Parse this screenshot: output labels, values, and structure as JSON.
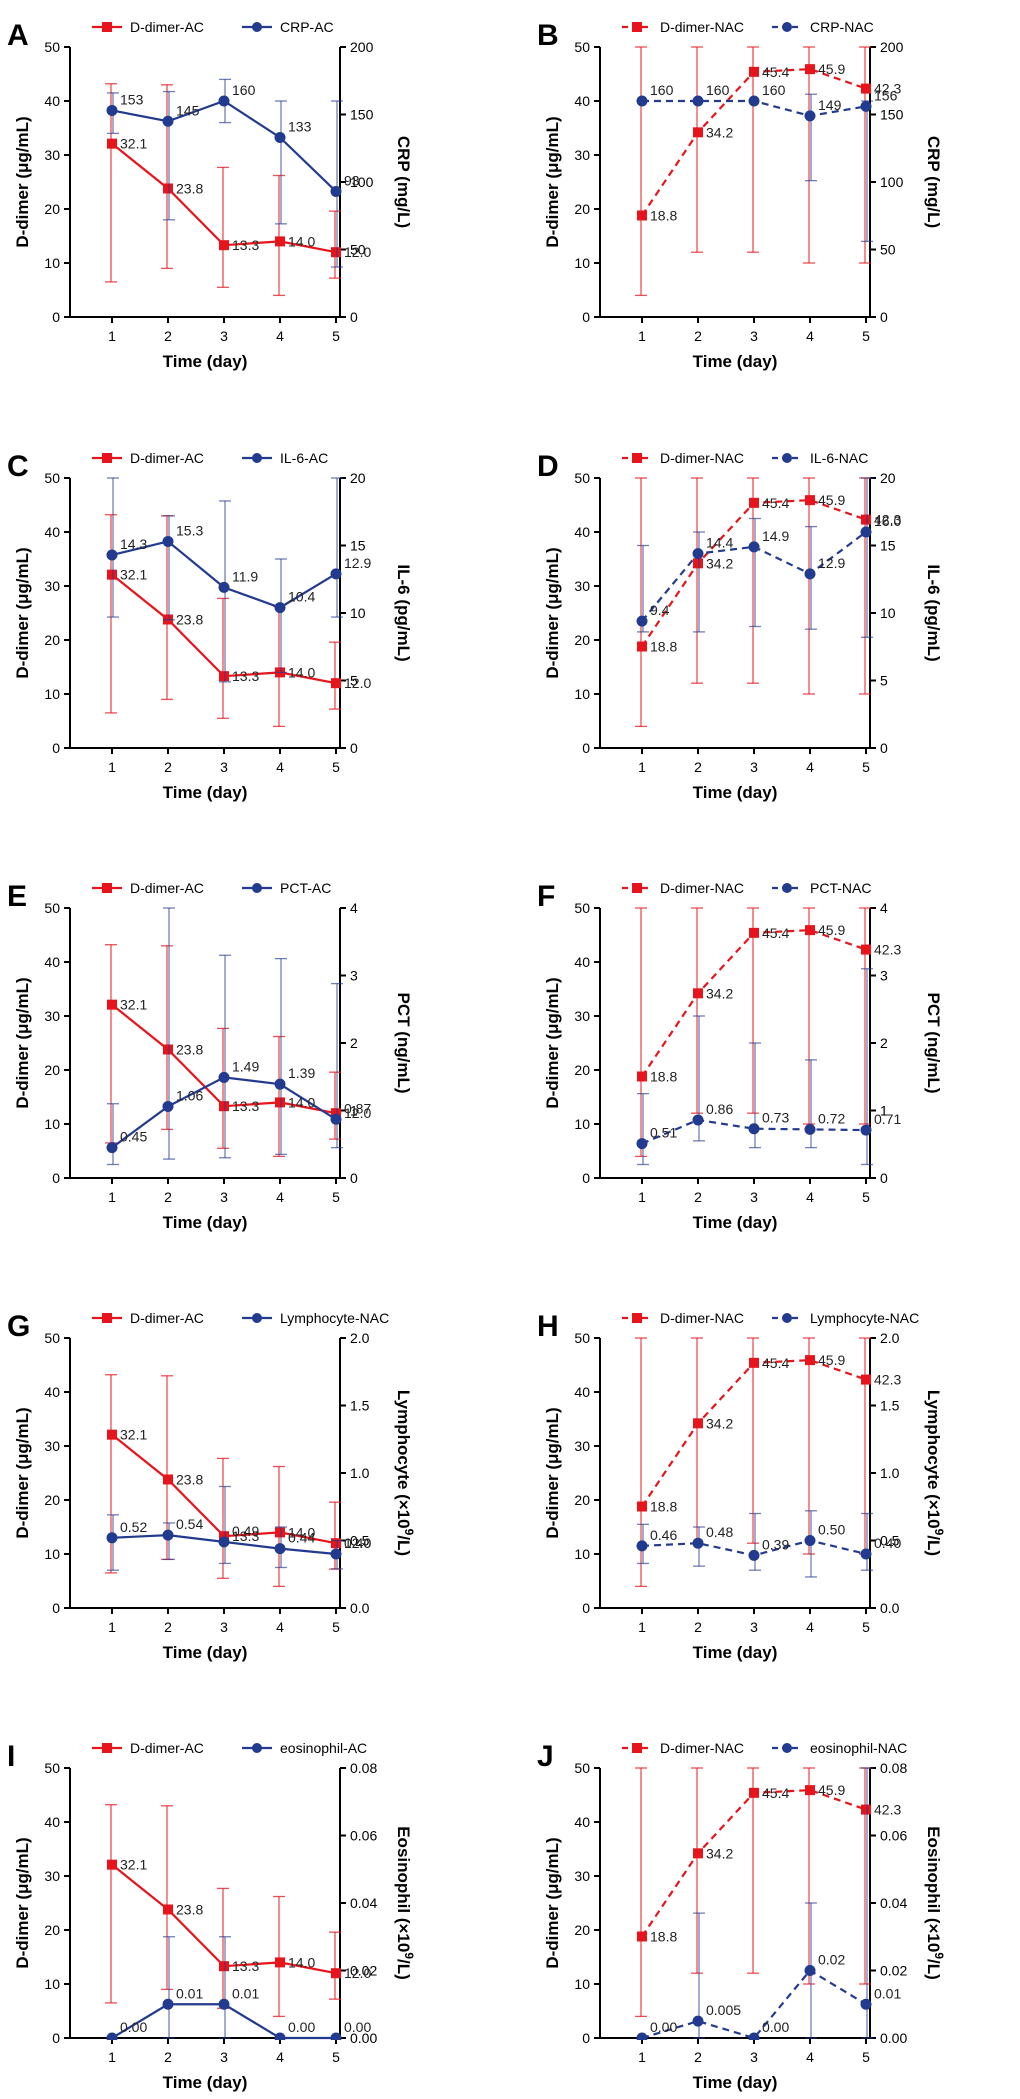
{
  "figure": {
    "xlabel": "Time (day)",
    "days": [
      "1",
      "2",
      "3",
      "4",
      "5"
    ],
    "left_axis": {
      "label": "D-dimer (μg/mL)",
      "ticks": [
        "0",
        "10",
        "20",
        "30",
        "40",
        "50"
      ]
    },
    "red_color": "#e8141b",
    "blue_color": "#233b8f"
  },
  "chart_data": [
    {
      "panel": "A",
      "type": "line",
      "xlabel": "Time (day)",
      "ylabel": "D-dimer (μg/mL)",
      "y2label": "CRP (mg/L)",
      "x": [
        1,
        2,
        3,
        4,
        5
      ],
      "ylim": [
        0,
        50
      ],
      "y2lim": [
        0,
        200
      ],
      "y2ticks": [
        "0",
        "50",
        "100",
        "150",
        "200"
      ],
      "series": [
        {
          "name": "D-dimer-AC",
          "axis": "left",
          "dashed": false,
          "marker": "square",
          "values": [
            32.1,
            23.8,
            13.3,
            14.0,
            12.0
          ],
          "labels": [
            "32.1",
            "23.8",
            "13.3",
            "14.0",
            "12.0"
          ],
          "err_low": [
            6.5,
            9,
            5.5,
            4,
            7.2
          ],
          "err_high": [
            43.2,
            43,
            27.7,
            26.2,
            19.6
          ]
        },
        {
          "name": "CRP-AC",
          "axis": "right",
          "dashed": false,
          "marker": "circle",
          "values": [
            153,
            145,
            160,
            133,
            93
          ],
          "labels": [
            "153",
            "145",
            "160",
            "133",
            "93"
          ],
          "err_low": [
            136,
            72,
            144,
            69,
            37
          ],
          "err_high": [
            166,
            167,
            176,
            160,
            160
          ]
        }
      ]
    },
    {
      "panel": "B",
      "type": "line",
      "xlabel": "Time (day)",
      "ylabel": "D-dimer (μg/mL)",
      "y2label": "CRP (mg/L)",
      "x": [
        1,
        2,
        3,
        4,
        5
      ],
      "ylim": [
        0,
        50
      ],
      "y2lim": [
        0,
        200
      ],
      "y2ticks": [
        "0",
        "50",
        "100",
        "150",
        "200"
      ],
      "series": [
        {
          "name": "D-dimer-NAC",
          "axis": "left",
          "dashed": true,
          "marker": "square",
          "values": [
            18.8,
            34.2,
            45.4,
            45.9,
            42.3
          ],
          "labels": [
            "18.8",
            "34.2",
            "45.4",
            "45.9",
            "42.3"
          ],
          "err_low": [
            4,
            12,
            12,
            10,
            10
          ],
          "err_high": [
            50,
            50,
            50,
            50,
            50
          ]
        },
        {
          "name": "CRP-NAC",
          "axis": "right",
          "dashed": true,
          "marker": "circle",
          "values": [
            160,
            160,
            160,
            149,
            156
          ],
          "labels": [
            "160",
            "160",
            "160",
            "149",
            "156"
          ],
          "err_low": [
            160,
            160,
            160,
            101,
            56
          ],
          "err_high": [
            160,
            160,
            160,
            165,
            160
          ]
        }
      ]
    },
    {
      "panel": "C",
      "type": "line",
      "xlabel": "Time (day)",
      "ylabel": "D-dimer (μg/mL)",
      "y2label": "IL-6 (pg/mL)",
      "x": [
        1,
        2,
        3,
        4,
        5
      ],
      "ylim": [
        0,
        50
      ],
      "y2lim": [
        0,
        20
      ],
      "y2ticks": [
        "0",
        "5",
        "10",
        "15",
        "20"
      ],
      "series": [
        {
          "name": "D-dimer-AC",
          "axis": "left",
          "dashed": false,
          "marker": "square",
          "values": [
            32.1,
            23.8,
            13.3,
            14.0,
            12.0
          ],
          "labels": [
            "32.1",
            "23.8",
            "13.3",
            "14.0",
            "12.0"
          ],
          "err_low": [
            6.5,
            9,
            5.5,
            4,
            7.2
          ],
          "err_high": [
            43.2,
            43,
            27.7,
            26.2,
            19.6
          ]
        },
        {
          "name": "IL-6-AC",
          "axis": "right",
          "dashed": false,
          "marker": "circle",
          "values": [
            14.3,
            15.3,
            11.9,
            10.4,
            12.9
          ],
          "labels": [
            "14.3",
            "15.3",
            "11.9",
            "10.4",
            "12.9"
          ],
          "err_low": [
            9.7,
            9.5,
            4.9,
            5.6,
            9.7
          ],
          "err_high": [
            20,
            17.2,
            18.3,
            14.0,
            20
          ]
        }
      ]
    },
    {
      "panel": "D",
      "type": "line",
      "xlabel": "Time (day)",
      "ylabel": "D-dimer (μg/mL)",
      "y2label": "IL-6 (pg/mL)",
      "x": [
        1,
        2,
        3,
        4,
        5
      ],
      "ylim": [
        0,
        50
      ],
      "y2lim": [
        0,
        20
      ],
      "y2ticks": [
        "0",
        "5",
        "10",
        "15",
        "20"
      ],
      "series": [
        {
          "name": "D-dimer-NAC",
          "axis": "left",
          "dashed": true,
          "marker": "square",
          "values": [
            18.8,
            34.2,
            45.4,
            45.9,
            42.3
          ],
          "labels": [
            "18.8",
            "34.2",
            "45.4",
            "45.9",
            "42.3"
          ],
          "err_low": [
            4,
            12,
            12,
            10,
            10
          ],
          "err_high": [
            50,
            50,
            50,
            50,
            50
          ]
        },
        {
          "name": "IL-6-NAC",
          "axis": "right",
          "dashed": true,
          "marker": "circle",
          "values": [
            9.4,
            14.4,
            14.9,
            12.9,
            16.0
          ],
          "labels": [
            "9.4",
            "14.4",
            "14.9",
            "12.9",
            "16.0"
          ],
          "err_low": [
            8.6,
            8.6,
            9.0,
            8.8,
            8.2
          ],
          "err_high": [
            15.0,
            16.0,
            17.0,
            16.4,
            20
          ]
        }
      ]
    },
    {
      "panel": "E",
      "type": "line",
      "xlabel": "Time (day)",
      "ylabel": "D-dimer (μg/mL)",
      "y2label": "PCT (ng/mL)",
      "x": [
        1,
        2,
        3,
        4,
        5
      ],
      "ylim": [
        0,
        50
      ],
      "y2lim": [
        0,
        4
      ],
      "y2ticks": [
        "0",
        "1",
        "2",
        "3",
        "4"
      ],
      "series": [
        {
          "name": "D-dimer-AC",
          "axis": "left",
          "dashed": false,
          "marker": "square",
          "values": [
            32.1,
            23.8,
            13.3,
            14.0,
            12.0
          ],
          "labels": [
            "32.1",
            "23.8",
            "13.3",
            "14.0",
            "12.0"
          ],
          "err_low": [
            6.5,
            9,
            5.5,
            4,
            7.2
          ],
          "err_high": [
            43.2,
            43,
            27.7,
            26.2,
            19.6
          ]
        },
        {
          "name": "PCT-AC",
          "axis": "right",
          "dashed": false,
          "marker": "circle",
          "values": [
            0.45,
            1.06,
            1.49,
            1.39,
            0.87
          ],
          "labels": [
            "0.45",
            "1.06",
            "1.49",
            "1.39",
            "0.87"
          ],
          "err_low": [
            0.2,
            0.28,
            0.3,
            0.35,
            0.45
          ],
          "err_high": [
            1.1,
            4.0,
            3.3,
            3.25,
            2.88
          ]
        }
      ]
    },
    {
      "panel": "F",
      "type": "line",
      "xlabel": "Time (day)",
      "ylabel": "D-dimer (μg/mL)",
      "y2label": "PCT (ng/mL)",
      "x": [
        1,
        2,
        3,
        4,
        5
      ],
      "ylim": [
        0,
        50
      ],
      "y2lim": [
        0,
        4
      ],
      "y2ticks": [
        "0",
        "1",
        "2",
        "3",
        "4"
      ],
      "series": [
        {
          "name": "D-dimer-NAC",
          "axis": "left",
          "dashed": true,
          "marker": "square",
          "values": [
            18.8,
            34.2,
            45.4,
            45.9,
            42.3
          ],
          "labels": [
            "18.8",
            "34.2",
            "45.4",
            "45.9",
            "42.3"
          ],
          "err_low": [
            4,
            12,
            12,
            10,
            10
          ],
          "err_high": [
            50,
            50,
            50,
            50,
            50
          ]
        },
        {
          "name": "PCT-NAC",
          "axis": "right",
          "dashed": true,
          "marker": "circle",
          "values": [
            0.51,
            0.86,
            0.73,
            0.72,
            0.71
          ],
          "labels": [
            "0.51",
            "0.86",
            "0.73",
            "0.72",
            "0.71"
          ],
          "err_low": [
            0.2,
            0.55,
            0.45,
            0.45,
            0.2
          ],
          "err_high": [
            1.25,
            2.4,
            2.0,
            1.75,
            3.1
          ]
        }
      ]
    },
    {
      "panel": "G",
      "type": "line",
      "xlabel": "Time (day)",
      "ylabel": "D-dimer (μg/mL)",
      "y2label": "Lymphocyte (×10⁹/L)",
      "x": [
        1,
        2,
        3,
        4,
        5
      ],
      "ylim": [
        0,
        50
      ],
      "y2lim": [
        0,
        2.0
      ],
      "y2ticks": [
        "0.0",
        "0.5",
        "1.0",
        "1.5",
        "2.0"
      ],
      "series": [
        {
          "name": "D-dimer-AC",
          "axis": "left",
          "dashed": false,
          "marker": "square",
          "values": [
            32.1,
            23.8,
            13.3,
            14.0,
            12.0
          ],
          "labels": [
            "32.1",
            "23.8",
            "13.3",
            "14.0",
            "12.0"
          ],
          "err_low": [
            6.5,
            9,
            5.5,
            4,
            7.2
          ],
          "err_high": [
            43.2,
            43,
            27.7,
            26.2,
            19.6
          ]
        },
        {
          "name": "Lymphocyte-NAC",
          "axis": "right",
          "dashed": false,
          "marker": "circle",
          "values": [
            0.52,
            0.54,
            0.49,
            0.44,
            0.4
          ],
          "labels": [
            "0.52",
            "0.54",
            "0.49",
            "0.44",
            "0.40"
          ],
          "err_low": [
            0.28,
            0.36,
            0.33,
            0.3,
            0.29
          ],
          "err_high": [
            0.69,
            0.63,
            0.9,
            0.6,
            0.5
          ]
        }
      ]
    },
    {
      "panel": "H",
      "type": "line",
      "xlabel": "Time (day)",
      "ylabel": "D-dimer (μg/mL)",
      "y2label": "Lymphocyte (×10⁹/L)",
      "x": [
        1,
        2,
        3,
        4,
        5
      ],
      "ylim": [
        0,
        50
      ],
      "y2lim": [
        0,
        2.0
      ],
      "y2ticks": [
        "0.0",
        "0.5",
        "1.0",
        "1.5",
        "2.0"
      ],
      "series": [
        {
          "name": "D-dimer-NAC",
          "axis": "left",
          "dashed": true,
          "marker": "square",
          "values": [
            18.8,
            34.2,
            45.4,
            45.9,
            42.3
          ],
          "labels": [
            "18.8",
            "34.2",
            "45.4",
            "45.9",
            "42.3"
          ],
          "err_low": [
            4,
            12,
            12,
            10,
            10
          ],
          "err_high": [
            50,
            50,
            50,
            50,
            50
          ]
        },
        {
          "name": "Lymphocyte-NAC",
          "axis": "right",
          "dashed": true,
          "marker": "circle",
          "values": [
            0.46,
            0.48,
            0.39,
            0.5,
            0.4
          ],
          "labels": [
            "0.46",
            "0.48",
            "0.39",
            "0.50",
            "0.40"
          ],
          "err_low": [
            0.33,
            0.31,
            0.28,
            0.23,
            0.28
          ],
          "err_high": [
            0.62,
            0.6,
            0.7,
            0.72,
            0.7
          ]
        }
      ]
    },
    {
      "panel": "I",
      "type": "line",
      "xlabel": "Time (day)",
      "ylabel": "D-dimer (μg/mL)",
      "y2label": "Eosinophil (×10⁹/L)",
      "x": [
        1,
        2,
        3,
        4,
        5
      ],
      "ylim": [
        0,
        50
      ],
      "y2lim": [
        0,
        0.08
      ],
      "y2ticks": [
        "0.00",
        "0.02",
        "0.04",
        "0.06",
        "0.08"
      ],
      "series": [
        {
          "name": "D-dimer-AC",
          "axis": "left",
          "dashed": false,
          "marker": "square",
          "values": [
            32.1,
            23.8,
            13.3,
            14.0,
            12.0
          ],
          "labels": [
            "32.1",
            "23.8",
            "13.3",
            "14.0",
            "12.0"
          ],
          "err_low": [
            6.5,
            9,
            5.5,
            4,
            7.2
          ],
          "err_high": [
            43.2,
            43,
            27.7,
            26.2,
            19.6
          ]
        },
        {
          "name": "eosinophil-AC",
          "axis": "right",
          "dashed": false,
          "marker": "circle",
          "values": [
            0.0,
            0.01,
            0.01,
            0.0,
            0.0
          ],
          "labels": [
            "0.00",
            "0.01",
            "0.01",
            "0.00",
            "0.00"
          ],
          "err_low": [
            0,
            0,
            0,
            0,
            0
          ],
          "err_high": [
            0,
            0.03,
            0.03,
            0,
            0
          ]
        }
      ]
    },
    {
      "panel": "J",
      "type": "line",
      "xlabel": "Time (day)",
      "ylabel": "D-dimer (μg/mL)",
      "y2label": "Eosinophil (×10⁹/L)",
      "x": [
        1,
        2,
        3,
        4,
        5
      ],
      "ylim": [
        0,
        50
      ],
      "y2lim": [
        0,
        0.08
      ],
      "y2ticks": [
        "0.00",
        "0.02",
        "0.04",
        "0.06",
        "0.08"
      ],
      "series": [
        {
          "name": "D-dimer-NAC",
          "axis": "left",
          "dashed": true,
          "marker": "square",
          "values": [
            18.8,
            34.2,
            45.4,
            45.9,
            42.3
          ],
          "labels": [
            "18.8",
            "34.2",
            "45.4",
            "45.9",
            "42.3"
          ],
          "err_low": [
            4,
            12,
            12,
            10,
            10
          ],
          "err_high": [
            50,
            50,
            50,
            50,
            50
          ]
        },
        {
          "name": "eosinophil-NAC",
          "axis": "right",
          "dashed": true,
          "marker": "circle",
          "values": [
            0.0,
            0.005,
            0.0,
            0.02,
            0.01
          ],
          "labels": [
            "0.00",
            "0.005",
            "0.00",
            "0.02",
            "0.01"
          ],
          "err_low": [
            0,
            0,
            0,
            0,
            0
          ],
          "err_high": [
            0,
            0.037,
            0,
            0.04,
            0.08
          ]
        }
      ]
    }
  ]
}
